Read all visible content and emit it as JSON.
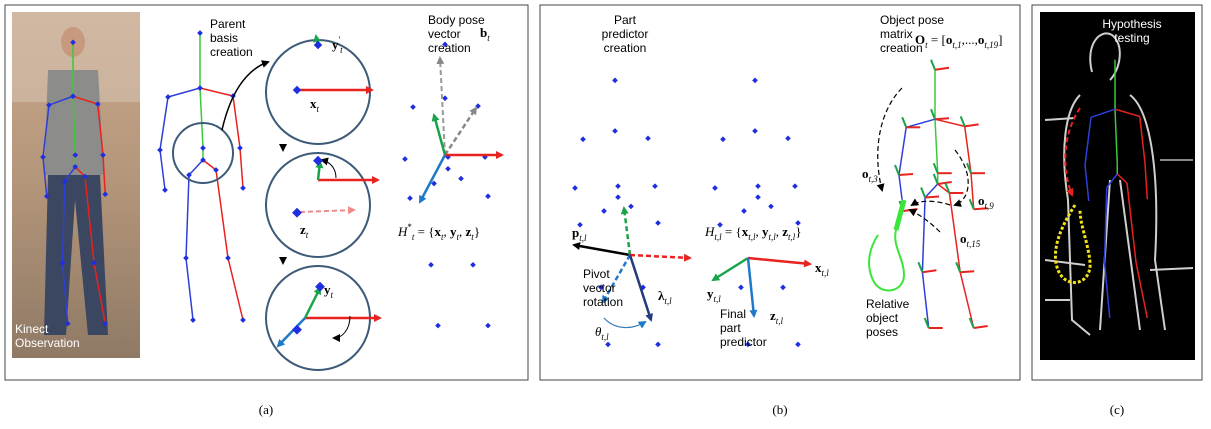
{
  "panel_a": {
    "caption": "(a)",
    "kinect": [
      "Kinect",
      "Observation"
    ],
    "parent_basis": [
      "Parent",
      "basis",
      "creation"
    ],
    "y_prime": [
      [
        "y",
        "b"
      ],
      [
        "'",
        "sup"
      ],
      [
        "t",
        "sub"
      ]
    ],
    "x": [
      [
        "x",
        "b"
      ],
      [
        "t",
        "sub"
      ]
    ],
    "z": [
      [
        "z",
        "b"
      ],
      [
        "t",
        "sub"
      ]
    ],
    "y": [
      [
        "y",
        "b"
      ],
      [
        "t",
        "sub"
      ]
    ],
    "body_pose": [
      "Body pose",
      "vector",
      "creation"
    ],
    "body_pose_vec": [
      [
        "b",
        "b"
      ],
      [
        "t",
        "sub"
      ]
    ],
    "hypothesis": [
      [
        "H",
        "i"
      ],
      [
        "*",
        "sup"
      ],
      [
        "t",
        "sub"
      ],
      [
        " = {",
        "n"
      ],
      [
        "x",
        "b"
      ],
      [
        "t",
        "sub"
      ],
      [
        ", ",
        "n"
      ],
      [
        "y",
        "b"
      ],
      [
        "t",
        "sub"
      ],
      [
        ", ",
        "n"
      ],
      [
        "z",
        "b"
      ],
      [
        "t",
        "sub"
      ],
      [
        "}",
        "n"
      ]
    ]
  },
  "panel_b": {
    "caption": "(b)",
    "part_predictor": [
      "Part",
      "predictor",
      "creation"
    ],
    "p": [
      [
        "p",
        "b"
      ],
      [
        "t,l",
        "sub"
      ]
    ],
    "pivot": [
      "Pivot",
      "vector",
      "rotation"
    ],
    "lambda": [
      [
        "λ",
        "b"
      ],
      [
        "t,l",
        "sub"
      ]
    ],
    "theta": [
      [
        "θ",
        "i"
      ],
      [
        "t,l",
        "sub"
      ]
    ],
    "hypothesis": [
      [
        "H",
        "i"
      ],
      [
        "t,l",
        "sub"
      ],
      [
        " = {",
        "n"
      ],
      [
        "x",
        "b"
      ],
      [
        "t,l",
        "sub"
      ],
      [
        ", ",
        "n"
      ],
      [
        "y",
        "b"
      ],
      [
        "t,l",
        "sub"
      ],
      [
        ", ",
        "n"
      ],
      [
        "z",
        "b"
      ],
      [
        "t,l",
        "sub"
      ],
      [
        "}",
        "n"
      ]
    ],
    "x": [
      [
        "x",
        "b"
      ],
      [
        "t,l",
        "sub"
      ]
    ],
    "y": [
      [
        "y",
        "b"
      ],
      [
        "t,l",
        "sub"
      ]
    ],
    "z": [
      [
        "z",
        "b"
      ],
      [
        "t,l",
        "sub"
      ]
    ],
    "final": [
      "Final",
      "part",
      "predictor"
    ],
    "object_pose": [
      "Object pose",
      "matrix",
      "creation"
    ],
    "O": [
      [
        "O",
        "b"
      ],
      [
        "t",
        "sub"
      ],
      [
        " = [",
        "n"
      ],
      [
        "o",
        "b"
      ],
      [
        "t,1",
        "sub"
      ],
      [
        ",...,",
        "n"
      ],
      [
        "o",
        "b"
      ],
      [
        "t,19",
        "sub"
      ],
      [
        "]",
        "n"
      ]
    ],
    "o3": [
      [
        "o",
        "b"
      ],
      [
        "t,3",
        "sub"
      ]
    ],
    "o9": [
      [
        "o",
        "b"
      ],
      [
        "t,9",
        "sub"
      ]
    ],
    "o15": [
      [
        "o",
        "b"
      ],
      [
        "t,15",
        "sub"
      ]
    ],
    "relative": [
      "Relative",
      "object",
      "poses"
    ]
  },
  "panel_c": {
    "caption": "(c)",
    "hypothesis": [
      "Hypothesis",
      "testing"
    ]
  }
}
